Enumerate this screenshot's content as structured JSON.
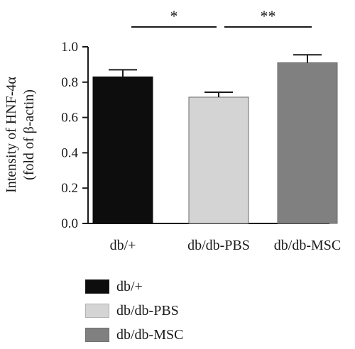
{
  "chart_data": {
    "type": "bar",
    "categories": [
      "db/+",
      "db/db-PBS",
      "db/db-MSC"
    ],
    "values": [
      0.83,
      0.715,
      0.91
    ],
    "errors": [
      0.04,
      0.028,
      0.045
    ],
    "colors": [
      "#0d0d0d",
      "#d4d4d4",
      "#808080"
    ],
    "ylabel_line1": "Intensity of HNF-4α",
    "ylabel_line2": "(fold of β-actin)",
    "ylim": [
      0,
      1.0
    ],
    "yticks": [
      "0.0",
      "0.2",
      "0.4",
      "0.6",
      "0.8",
      "1.0"
    ],
    "significance": [
      {
        "from": 0,
        "to": 1,
        "label": "*"
      },
      {
        "from": 1,
        "to": 2,
        "label": "**"
      }
    ],
    "legend": [
      "db/+",
      "db/db-PBS",
      "db/db-MSC"
    ]
  }
}
